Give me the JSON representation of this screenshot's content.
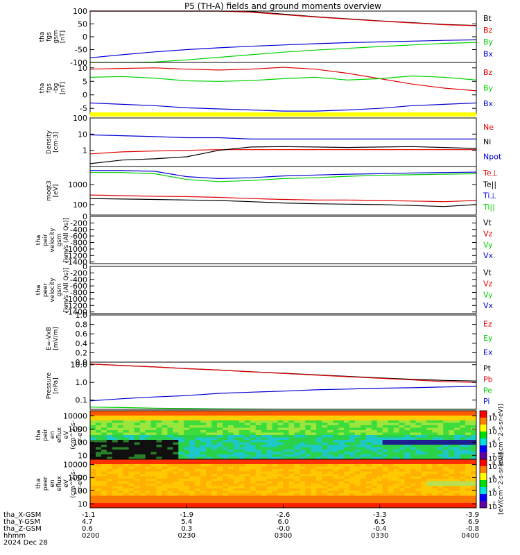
{
  "title": "P5 (TH-A) fields and ground moments overview",
  "date_label": "2024 Dec 28",
  "colors": {
    "black": "#000000",
    "red": "#e00000",
    "green": "#00d000",
    "blue": "#0000d0",
    "yellow": "#ffff00"
  },
  "footer": {
    "row_labels": [
      "tha_X-GSM",
      "tha_Y-GSM",
      "tha_Z-GSM",
      "hhmm"
    ],
    "columns": [
      {
        "x": "-1.1",
        "y": "4.7",
        "z": "0.6",
        "t": "0200"
      },
      {
        "x": "-1.9",
        "y": "5.4",
        "z": "0.3",
        "t": "0230"
      },
      {
        "x": "-2.6",
        "y": "6.0",
        "z": "-0.0",
        "t": "0300"
      },
      {
        "x": "-3.3",
        "y": "6.5",
        "z": "-0.4",
        "t": "0330"
      },
      {
        "x": "-3.9",
        "y": "6.9",
        "z": "-0.8",
        "t": "0400"
      }
    ]
  },
  "colorbar": {
    "label": "[eV/(cm^2-s-sr-eV)]",
    "label_top": "[eV/(cm^2-s-sr-eV)]",
    "ticks_top": [
      "10^8",
      "10^6",
      "10^4",
      "10^2"
    ],
    "ticks_bottom": [
      "10^8",
      "10^6",
      "10^4",
      "10^2"
    ]
  },
  "chart_data": [
    {
      "type": "line",
      "ylabel": [
        "tha",
        "fgs",
        "gsm",
        "[nT]"
      ],
      "ylim": [
        -100,
        100
      ],
      "yticks": [
        "100",
        "50",
        "0",
        "-50",
        "-100"
      ],
      "series": [
        {
          "name": "Bt",
          "color": "black",
          "values": [
            100,
            100,
            100,
            100,
            100,
            98,
            88,
            78,
            70,
            62,
            55,
            48,
            44
          ]
        },
        {
          "name": "Bz",
          "color": "red",
          "values": [
            100,
            100,
            100,
            100,
            100,
            96,
            86,
            77,
            69,
            61,
            54,
            47,
            43
          ]
        },
        {
          "name": "By",
          "color": "green",
          "values": [
            -100,
            -100,
            -98,
            -90,
            -80,
            -70,
            -60,
            -52,
            -45,
            -38,
            -32,
            -26,
            -22
          ]
        },
        {
          "name": "Bx",
          "color": "blue",
          "values": [
            -82,
            -70,
            -59,
            -50,
            -43,
            -37,
            -32,
            -27,
            -23,
            -20,
            -17,
            -14,
            -12
          ]
        }
      ]
    },
    {
      "type": "line",
      "ylabel": [
        "tha",
        "fgs",
        "-bg",
        "[nT]"
      ],
      "ylim": [
        -7,
        12
      ],
      "yticks": [
        "10",
        "5",
        "0",
        "-5"
      ],
      "series": [
        {
          "name": "Bz",
          "color": "red",
          "values": [
            9.5,
            9.8,
            10,
            9.5,
            9.2,
            9.5,
            10.2,
            9.5,
            8,
            6,
            4,
            2.5,
            1.5
          ]
        },
        {
          "name": "By",
          "color": "green",
          "values": [
            6.5,
            6.8,
            6.2,
            5.2,
            5,
            5.3,
            6,
            6.5,
            5.5,
            6,
            7,
            6.5,
            5.5
          ]
        },
        {
          "name": "Bx",
          "color": "blue",
          "values": [
            -3,
            -3.5,
            -4,
            -4.8,
            -5.2,
            -5.6,
            -6,
            -6,
            -5.6,
            -5,
            -4,
            -3.5,
            -3
          ]
        }
      ]
    },
    {
      "type": "line",
      "ylabel": [
        "Density",
        "[cm-3]"
      ],
      "log": true,
      "ylim": [
        0.1,
        100
      ],
      "yticks": [
        "100",
        "10",
        "1"
      ],
      "series": [
        {
          "name": "Ne",
          "color": "red",
          "values": [
            0.6,
            0.8,
            0.9,
            1,
            1.1,
            1.1,
            1.1,
            1.1,
            1.1,
            1.1,
            1.1,
            1.1,
            1.1
          ]
        },
        {
          "name": "Ni",
          "color": "black",
          "values": [
            0.15,
            0.25,
            0.3,
            0.4,
            1,
            1.6,
            1.7,
            1.6,
            1.5,
            1.6,
            1.7,
            1.5,
            1.3
          ]
        },
        {
          "name": "Npot",
          "color": "blue",
          "values": [
            9,
            8,
            7,
            6,
            6,
            5,
            5,
            5,
            5,
            5,
            5,
            5,
            5
          ]
        }
      ]
    },
    {
      "type": "line",
      "ylabel": [
        "moqt3",
        "[eV]"
      ],
      "log": true,
      "ylim": [
        30,
        8000
      ],
      "yticks": [
        "1000",
        "100"
      ],
      "series": [
        {
          "name": "Te⊥",
          "color": "red",
          "values": [
            300,
            280,
            260,
            250,
            230,
            200,
            180,
            170,
            170,
            160,
            150,
            140,
            160
          ]
        },
        {
          "name": "Te||",
          "color": "black",
          "values": [
            200,
            190,
            180,
            170,
            160,
            140,
            120,
            110,
            105,
            100,
            90,
            80,
            100
          ]
        },
        {
          "name": "Ti⊥",
          "color": "blue",
          "values": [
            5000,
            5000,
            4600,
            2500,
            2000,
            2200,
            2700,
            3000,
            3300,
            3500,
            3800,
            4000,
            4200
          ]
        },
        {
          "name": "Ti||",
          "color": "green",
          "values": [
            4000,
            4000,
            3500,
            1800,
            1400,
            1600,
            2000,
            2200,
            2600,
            2900,
            3100,
            3300,
            3500
          ]
        }
      ]
    },
    {
      "type": "line",
      "ylabel": [
        "tha",
        "peir",
        "velocity",
        "gsm",
        "[km/s (All Qs)]"
      ],
      "ylim": [
        -1450,
        0
      ],
      "yticks": [
        "0",
        "-200",
        "-400",
        "-600",
        "-800",
        "-1000",
        "-1200",
        "-1400"
      ],
      "series": [
        {
          "name": "Vt",
          "color": "black",
          "values": []
        },
        {
          "name": "Vz",
          "color": "red",
          "values": []
        },
        {
          "name": "Vy",
          "color": "green",
          "values": []
        },
        {
          "name": "Vx",
          "color": "blue",
          "values": []
        }
      ]
    },
    {
      "type": "line",
      "ylabel": [
        "tha",
        "peer",
        "velocity",
        "gsm",
        "[km/s (All Qs)]"
      ],
      "ylim": [
        -1450,
        0
      ],
      "yticks": [
        "0",
        "-200",
        "-400",
        "-600",
        "-800",
        "-1000",
        "-1200",
        "-1400"
      ],
      "series": [
        {
          "name": "Vt",
          "color": "black",
          "values": []
        },
        {
          "name": "Vz",
          "color": "red",
          "values": []
        },
        {
          "name": "Vy",
          "color": "green",
          "values": []
        },
        {
          "name": "Vx",
          "color": "blue",
          "values": []
        }
      ]
    },
    {
      "type": "line",
      "ylabel": [
        "E=-VxB",
        "[mV/m]"
      ],
      "ylim": [
        0,
        1
      ],
      "yticks": [
        "1.0",
        "0.8",
        "0.6",
        "0.4",
        "0.2",
        "0.0"
      ],
      "series": [
        {
          "name": "Ez",
          "color": "red",
          "values": []
        },
        {
          "name": "Ey",
          "color": "green",
          "values": []
        },
        {
          "name": "Ex",
          "color": "blue",
          "values": []
        }
      ]
    },
    {
      "type": "line",
      "ylabel": [
        "Pressure",
        "[nPa]"
      ],
      "log": true,
      "ylim": [
        0.03,
        14
      ],
      "yticks": [
        "10.0",
        "1.0",
        "0.1"
      ],
      "series": [
        {
          "name": "Pt",
          "color": "black",
          "values": [
            11,
            9,
            7.5,
            6,
            5,
            4,
            3.3,
            2.7,
            2.2,
            1.8,
            1.5,
            1.3,
            1.2
          ]
        },
        {
          "name": "Pb",
          "color": "red",
          "values": [
            11,
            9,
            7.5,
            6,
            5,
            4,
            3.2,
            2.6,
            2.1,
            1.7,
            1.4,
            1.1,
            1.0
          ]
        },
        {
          "name": "Pe",
          "color": "green",
          "values": [
            0.04,
            0.038,
            0.035,
            0.033,
            0.032,
            0.031,
            0.03,
            0.03,
            0.03,
            0.03,
            0.03,
            0.03,
            0.03
          ]
        },
        {
          "name": "Pi",
          "color": "blue",
          "values": [
            0.09,
            0.12,
            0.15,
            0.18,
            0.24,
            0.28,
            0.32,
            0.38,
            0.42,
            0.47,
            0.5,
            0.55,
            0.6
          ]
        }
      ]
    },
    {
      "type": "heatmap",
      "ylabel": [
        "tha",
        "peir",
        "en",
        "eflux",
        "eV",
        "(cm^2-s-",
        "sr-eV)"
      ],
      "log": true,
      "ylim": [
        5,
        25000
      ],
      "yticks": [
        "10000",
        "1000",
        "100",
        "10"
      ]
    },
    {
      "type": "heatmap",
      "ylabel": [
        "tha",
        "peer",
        "en",
        "eflux",
        "eV",
        "(cm^2-s-",
        "sr-eV)"
      ],
      "log": true,
      "ylim": [
        5,
        25000
      ],
      "yticks": [
        "10000",
        "1000",
        "100",
        "10"
      ]
    }
  ]
}
